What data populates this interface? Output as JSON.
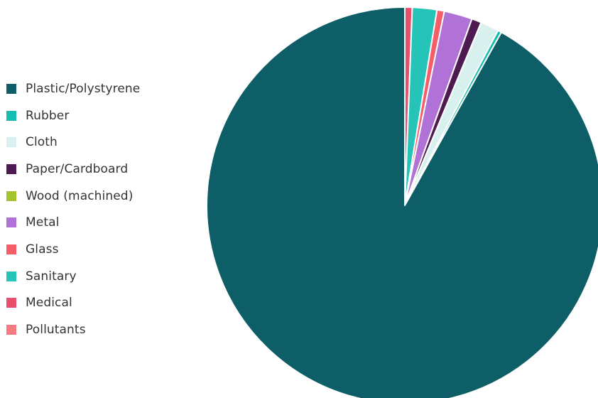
{
  "chart_data": {
    "type": "pie",
    "title": "",
    "legend_position": "left",
    "start_angle": "top, clockwise",
    "categories": [
      "Plastic/Polystyrene",
      "Rubber",
      "Cloth",
      "Paper/Cardboard",
      "Wood (machined)",
      "Metal",
      "Glass",
      "Sanitary",
      "Medical",
      "Pollutants"
    ],
    "values": [
      91.9,
      0.3,
      1.5,
      0.8,
      0.0,
      2.3,
      0.6,
      2.0,
      0.6,
      0.0
    ],
    "colors": [
      "#0d5e66",
      "#14bdb0",
      "#d8f1ef",
      "#4d1a52",
      "#a5c32e",
      "#b072d6",
      "#f45e68",
      "#26c3b8",
      "#e84f6b",
      "#f57a82"
    ]
  }
}
